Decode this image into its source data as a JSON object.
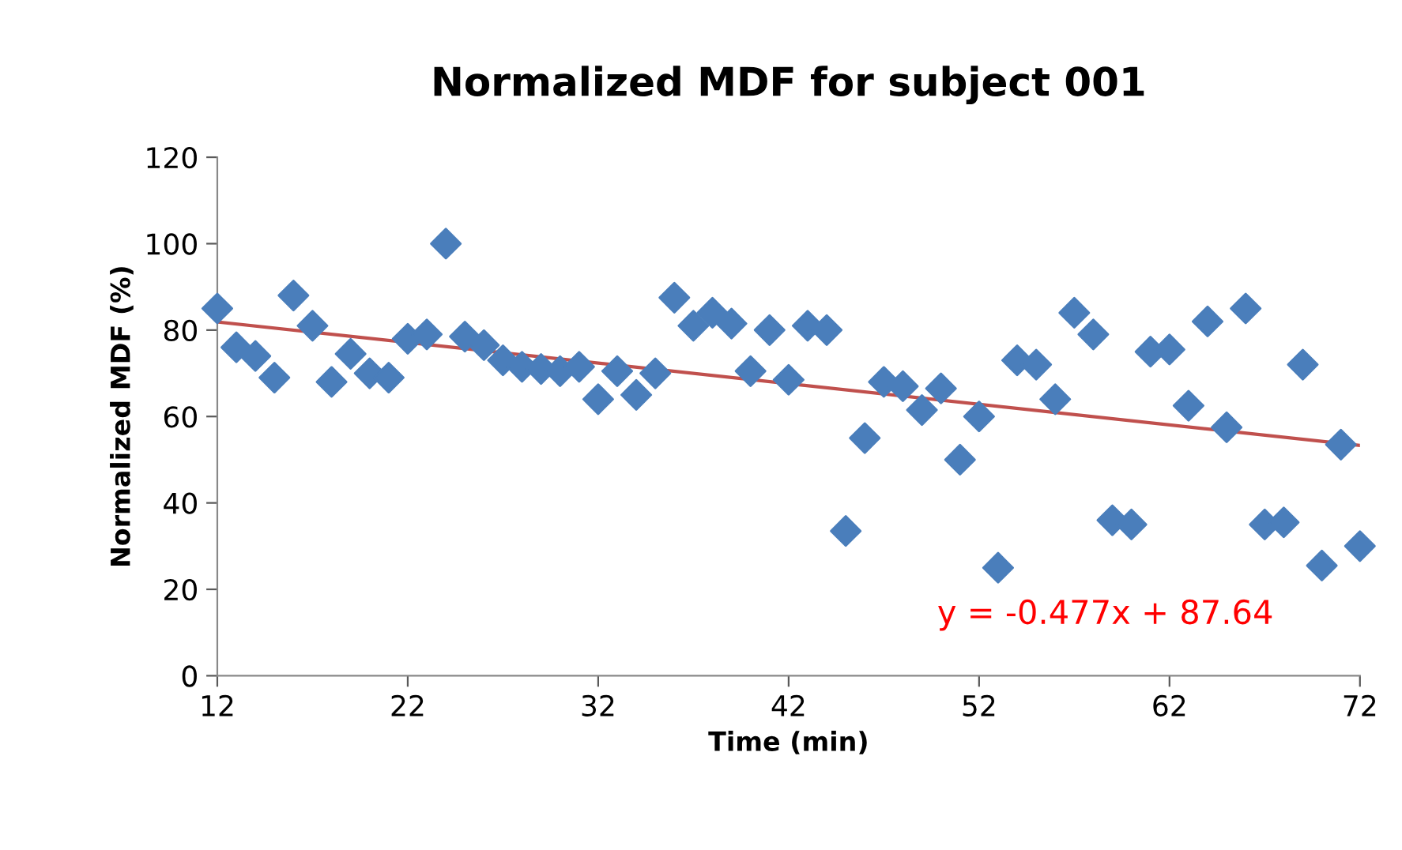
{
  "chart_data": {
    "type": "scatter",
    "title": "Normalized MDF for subject 001",
    "xlabel": "Time (min)",
    "ylabel": "Normalized MDF (%)",
    "xlim": [
      12,
      72
    ],
    "ylim": [
      0,
      120
    ],
    "xticks": [
      12,
      22,
      32,
      42,
      52,
      62,
      72
    ],
    "yticks": [
      0,
      20,
      40,
      60,
      80,
      100,
      120
    ],
    "grid": false,
    "marker": "diamond",
    "annotations": [
      "y = -0.477x + 87.64"
    ],
    "series": [
      {
        "color": "#4a7ebb",
        "x": [
          12,
          13,
          14,
          15,
          16,
          17,
          18,
          19,
          20,
          21,
          22,
          23,
          24,
          25,
          26,
          27,
          28,
          29,
          30,
          31,
          32,
          33,
          34,
          35,
          36,
          37,
          38,
          39,
          40,
          41,
          42,
          43,
          44,
          45,
          46,
          47,
          48,
          49,
          50,
          51,
          52,
          53,
          54,
          55,
          56,
          57,
          58,
          59,
          60,
          61,
          62,
          63,
          64,
          65,
          66,
          67,
          68,
          69,
          70,
          71,
          72
        ],
        "values": [
          85,
          76,
          74,
          69,
          88,
          81,
          68,
          74.5,
          70,
          69,
          78,
          79,
          100,
          78.5,
          76.5,
          73,
          71.5,
          71,
          70.5,
          71.5,
          64,
          70.5,
          65,
          70,
          87.5,
          81,
          84,
          81.5,
          70.5,
          80,
          68.5,
          81,
          80,
          33.5,
          55,
          68,
          67,
          61.5,
          66.5,
          50,
          60,
          25,
          73,
          72,
          64,
          84,
          79,
          36,
          35,
          75,
          75.5,
          62.5,
          82,
          57.5,
          85,
          35,
          35.5,
          72,
          25.5,
          53.5,
          30
        ]
      },
      {
        "type": "line",
        "color": "#c0504d",
        "x": [
          12,
          72
        ],
        "values": [
          81.9,
          53.3
        ],
        "marker": "none"
      }
    ]
  }
}
